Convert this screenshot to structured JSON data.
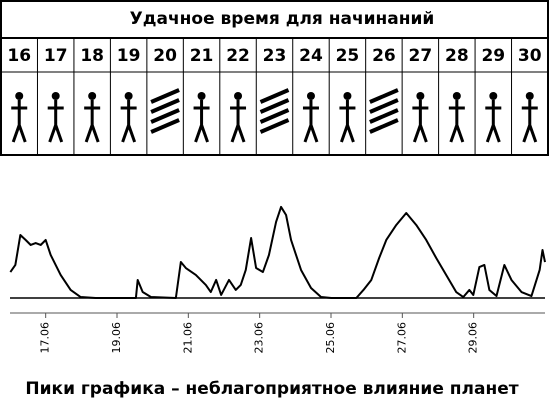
{
  "header": {
    "title": "Удачное время для начинаний",
    "days": [
      "16",
      "17",
      "18",
      "19",
      "20",
      "21",
      "22",
      "23",
      "24",
      "25",
      "26",
      "27",
      "28",
      "29",
      "30"
    ]
  },
  "chart_data": {
    "type": "line",
    "caption": "Пики графика – неблагоприятное влияние планет",
    "x": [
      16.01,
      16.15,
      16.29,
      16.44,
      16.58,
      16.72,
      16.86,
      17.0,
      17.14,
      17.42,
      17.7,
      17.98,
      18.4,
      19.53,
      19.58,
      19.72,
      19.95,
      20.65,
      20.79,
      20.93,
      21.21,
      21.49,
      21.63,
      21.78,
      21.92,
      22.14,
      22.33,
      22.47,
      22.61,
      22.76,
      22.9,
      23.09,
      23.26,
      23.46,
      23.6,
      23.74,
      23.88,
      24.16,
      24.44,
      24.72,
      25.01,
      25.71,
      25.91,
      26.13,
      26.35,
      26.55,
      26.83,
      27.11,
      27.39,
      27.67,
      27.95,
      28.23,
      28.51,
      28.71,
      28.88,
      28.99,
      29.16,
      29.3,
      29.44,
      29.64,
      29.86,
      30.06,
      30.34,
      30.62,
      30.85,
      30.93,
      31.0
    ],
    "series": [
      {
        "color": "#000000",
        "values": [
          2.65,
          3.37,
          6.43,
          5.92,
          5.41,
          5.61,
          5.41,
          5.92,
          4.39,
          2.35,
          0.82,
          0.1,
          0,
          0,
          1.84,
          0.61,
          0.1,
          0,
          3.67,
          3.06,
          2.35,
          1.33,
          0.61,
          1.84,
          0.31,
          1.84,
          0.82,
          1.33,
          2.86,
          6.12,
          3.06,
          2.65,
          4.39,
          7.76,
          9.29,
          8.47,
          5.92,
          2.86,
          1.02,
          0.1,
          0,
          0,
          0.82,
          1.84,
          4.08,
          5.92,
          7.45,
          8.67,
          7.45,
          5.92,
          4.08,
          2.35,
          0.61,
          0.1,
          0.82,
          0.31,
          3.16,
          3.37,
          0.82,
          0.2,
          3.37,
          1.84,
          0.61,
          0.2,
          2.86,
          4.9,
          3.67
        ]
      }
    ],
    "xlim": [
      16,
      31
    ],
    "ylim": [
      0,
      10
    ],
    "xticks": [
      {
        "value": 17,
        "label": "17.06"
      },
      {
        "value": 19,
        "label": "19.06"
      },
      {
        "value": 21,
        "label": "21.06"
      },
      {
        "value": 23,
        "label": "23.06"
      },
      {
        "value": 25,
        "label": "25.06"
      },
      {
        "value": 27,
        "label": "27.06"
      },
      {
        "value": 29,
        "label": "29.06"
      }
    ]
  }
}
